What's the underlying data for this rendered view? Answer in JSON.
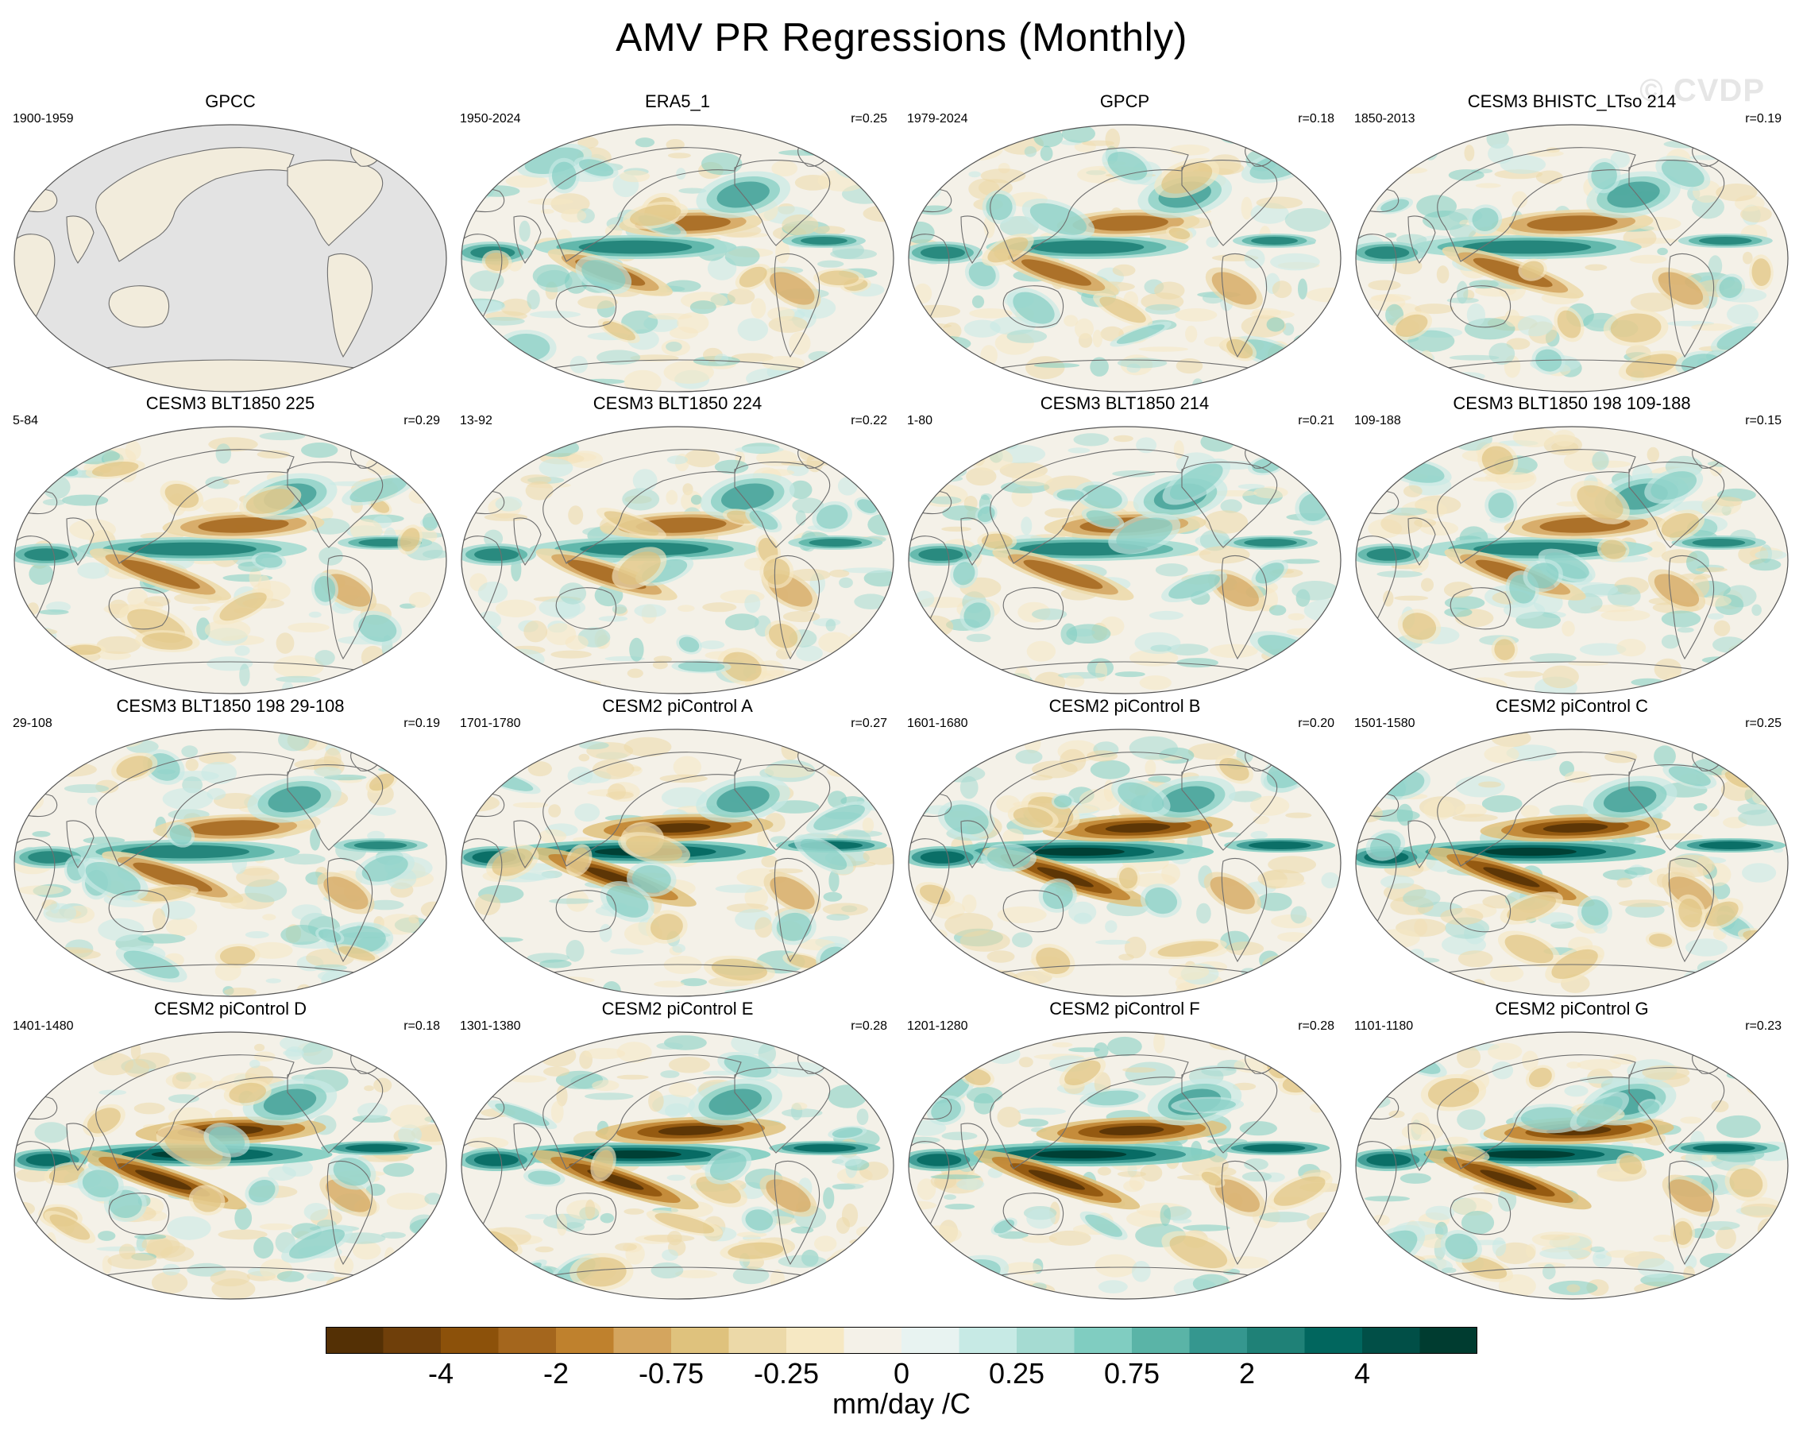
{
  "title": "AMV PR Regressions (Monthly)",
  "watermark": "© CVDP",
  "panels": [
    {
      "title": "GPCC",
      "period": "1900-1959",
      "r": "",
      "style": "gpcc"
    },
    {
      "title": "ERA5_1",
      "period": "1950-2024",
      "r": "r=0.25",
      "style": "obs",
      "seed": 11
    },
    {
      "title": "GPCP",
      "period": "1979-2024",
      "r": "r=0.18",
      "style": "obs",
      "seed": 23
    },
    {
      "title": "CESM3 BHISTC_LTso 214",
      "period": "1850-2013",
      "r": "r=0.19",
      "style": "model",
      "seed": 37
    },
    {
      "title": "CESM3 BLT1850 225",
      "period": "5-84",
      "r": "r=0.29",
      "style": "model",
      "seed": 41
    },
    {
      "title": "CESM3 BLT1850 224",
      "period": "13-92",
      "r": "r=0.22",
      "style": "model",
      "seed": 53
    },
    {
      "title": "CESM3 BLT1850 214",
      "period": "1-80",
      "r": "r=0.21",
      "style": "model",
      "seed": 67
    },
    {
      "title": "CESM3 BLT1850 198 109-188",
      "period": "109-188",
      "r": "r=0.15",
      "style": "model",
      "seed": 71
    },
    {
      "title": "CESM3 BLT1850 198 29-108",
      "period": "29-108",
      "r": "r=0.19",
      "style": "model",
      "seed": 83
    },
    {
      "title": "CESM2 piControl A",
      "period": "1701-1780",
      "r": "r=0.27",
      "style": "strong",
      "seed": 97
    },
    {
      "title": "CESM2 piControl B",
      "period": "1601-1680",
      "r": "r=0.20",
      "style": "strong",
      "seed": 101
    },
    {
      "title": "CESM2 piControl C",
      "period": "1501-1580",
      "r": "r=0.25",
      "style": "strong",
      "seed": 113
    },
    {
      "title": "CESM2 piControl D",
      "period": "1401-1480",
      "r": "r=0.18",
      "style": "strong",
      "seed": 127
    },
    {
      "title": "CESM2 piControl E",
      "period": "1301-1380",
      "r": "r=0.28",
      "style": "strong",
      "seed": 131
    },
    {
      "title": "CESM2 piControl F",
      "period": "1201-1280",
      "r": "r=0.28",
      "style": "strong",
      "seed": 139
    },
    {
      "title": "CESM2 piControl G",
      "period": "1101-1180",
      "r": "r=0.23",
      "style": "strong",
      "seed": 149
    }
  ],
  "colorbar": {
    "colors": [
      "#543005",
      "#6f3f0a",
      "#8c510a",
      "#a4661d",
      "#bf812d",
      "#d4a55e",
      "#dfc27d",
      "#ecd9a8",
      "#f6e8c3",
      "#f4f1e8",
      "#e8f3f1",
      "#c7eae5",
      "#a5dbd2",
      "#80cdc1",
      "#5ab4a7",
      "#35978f",
      "#1f8177",
      "#01665e",
      "#014f47",
      "#003c30"
    ],
    "labels": [
      "-4",
      "-2",
      "-0.75",
      "-0.25",
      "0",
      "0.25",
      "0.75",
      "2",
      "4"
    ],
    "label_boundaries": [
      2,
      4,
      6,
      8,
      10,
      12,
      14,
      16,
      18
    ],
    "units": "mm/day /C"
  }
}
